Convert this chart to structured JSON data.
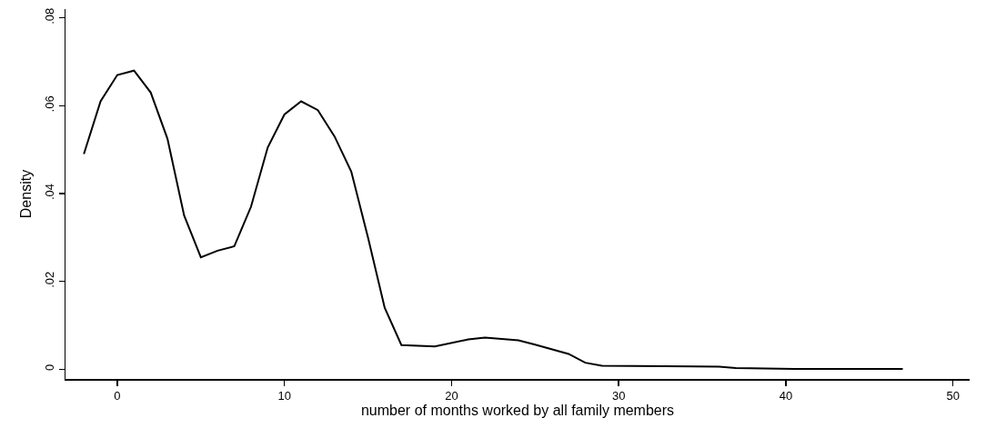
{
  "chart_data": {
    "type": "line",
    "xlabel": "number of months worked by all family members",
    "ylabel": "Density",
    "x": [
      -2,
      -1,
      0,
      1,
      2,
      3,
      4,
      5,
      6,
      7,
      8,
      9,
      10,
      11,
      12,
      13,
      14,
      15,
      16,
      17,
      19,
      21,
      22,
      24,
      25,
      27,
      28,
      29,
      36,
      37,
      40.5,
      47
    ],
    "series": [
      {
        "color": "#000000",
        "values": [
          0.049,
          0.061,
          0.067,
          0.068,
          0.063,
          0.0525,
          0.035,
          0.0255,
          0.027,
          0.028,
          0.037,
          0.0505,
          0.058,
          0.061,
          0.059,
          0.053,
          0.045,
          0.03,
          0.014,
          0.0055,
          0.0052,
          0.0068,
          0.0072,
          0.0066,
          0.0056,
          0.0035,
          0.0015,
          0.0008,
          0.0006,
          0.0003,
          0.0001,
          0.0001
        ]
      }
    ],
    "xlim": [
      -3.1,
      51
    ],
    "ylim": [
      -0.0022,
      0.082
    ],
    "xticks": [
      0,
      10,
      20,
      30,
      40,
      50
    ],
    "yticks": [
      {
        "value": 0,
        "label": "0"
      },
      {
        "value": 0.02,
        "label": ".02"
      },
      {
        "value": 0.04,
        "label": ".04"
      },
      {
        "value": 0.06,
        "label": ".06"
      },
      {
        "value": 0.08,
        "label": ".08"
      }
    ],
    "grid": false,
    "marker": "none",
    "line_style": "solid"
  }
}
